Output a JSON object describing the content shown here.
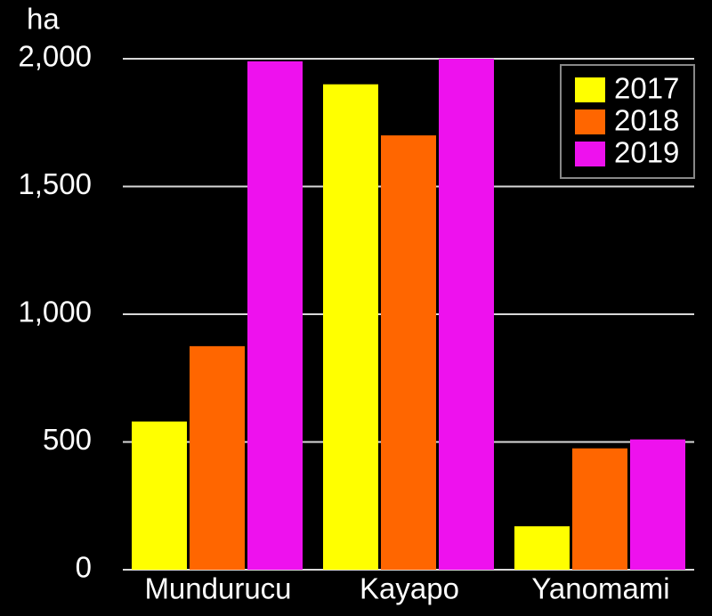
{
  "chart_data": {
    "type": "bar",
    "y_label": "ha",
    "categories": [
      "Mundurucu",
      "Kayapo",
      "Yanomami"
    ],
    "series": [
      {
        "name": "2017",
        "color": "#ffff00",
        "values": [
          580,
          1900,
          170
        ]
      },
      {
        "name": "2018",
        "color": "#ff6600",
        "values": [
          875,
          1700,
          475
        ]
      },
      {
        "name": "2019",
        "color": "#ee11ee",
        "values": [
          1990,
          2000,
          510
        ]
      }
    ],
    "ylim": [
      0,
      2000
    ],
    "yticks": [
      0,
      500,
      {
        "value": 1000,
        "label": "1,000"
      },
      {
        "value": 1500,
        "label": "1,500"
      },
      {
        "value": 2000,
        "label": "2,000"
      }
    ],
    "grid": true,
    "legend": "top-right"
  }
}
